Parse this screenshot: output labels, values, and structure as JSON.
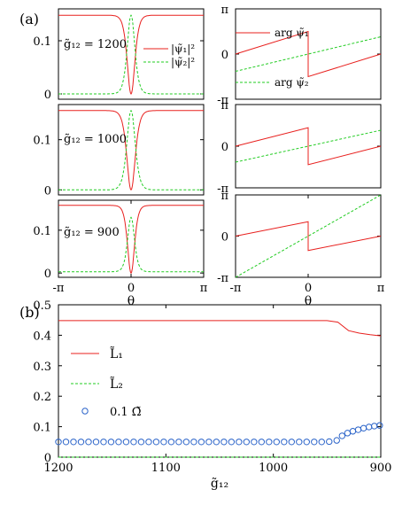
{
  "figure": {
    "label_a": "(a)",
    "label_b": "(b)"
  },
  "legend": {
    "density_1": "|ψ̃₁|²",
    "density_2": "|ψ̃₂|²",
    "phase_1": "arg ψ̃₁",
    "phase_2": "arg ψ̃₂",
    "L1": "L̃₁",
    "L2": "L̃₂",
    "Omega": "0.1 Ω̃"
  },
  "colors": {
    "series_1": "#e8201e",
    "series_2": "#22cc22",
    "omega": "#2a63c9"
  },
  "chart_data": [
    {
      "type": "line",
      "panel": "density",
      "annotation": "g̃₁₂ = 1200",
      "xlim": [
        -3.14159,
        3.14159
      ],
      "ylim": [
        -0.01,
        0.16
      ],
      "yticks": [
        "0",
        "0.1"
      ],
      "xticks": [],
      "series": [
        {
          "name": "|ψ̃₁|²",
          "plateau": 0.148,
          "min": 0.0,
          "width": 0.22
        },
        {
          "name": "|ψ̃₂|²",
          "peak": 0.148,
          "base": 0.0,
          "width": 0.22
        }
      ]
    },
    {
      "type": "line",
      "panel": "density",
      "annotation": "g̃₁₂ = 1000",
      "xlim": [
        -3.14159,
        3.14159
      ],
      "ylim": [
        -0.01,
        0.17
      ],
      "yticks": [
        "0",
        "0.1"
      ],
      "xticks": [],
      "series": [
        {
          "plateau": 0.158,
          "min": 0.0,
          "width": 0.24
        },
        {
          "peak": 0.158,
          "base": 0.0,
          "width": 0.24
        }
      ]
    },
    {
      "type": "line",
      "panel": "density",
      "annotation": "g̃₁₂ = 900",
      "xlim": [
        -3.14159,
        3.14159
      ],
      "ylim": [
        -0.01,
        0.17
      ],
      "yticks": [
        "0",
        "0.1"
      ],
      "xticks": [
        "-π",
        "0",
        "π"
      ],
      "xlabel": "θ",
      "series": [
        {
          "plateau": 0.158,
          "min": 0.0,
          "width": 0.2
        },
        {
          "peak": 0.13,
          "base": 0.003,
          "width": 0.2
        }
      ]
    },
    {
      "type": "line",
      "panel": "phase",
      "xlim": [
        -3.14159,
        3.14159
      ],
      "ylim": [
        -3.14159,
        3.14159
      ],
      "yticks": [
        "-π",
        "0",
        "π"
      ],
      "xticks": [],
      "series": [
        {
          "name": "arg ψ̃₁",
          "start": 0.0,
          "before_jump": 1.57,
          "after_jump": -1.57,
          "end": 0.0
        },
        {
          "name": "arg ψ̃₂",
          "start": -1.2,
          "end": 1.2
        }
      ]
    },
    {
      "type": "line",
      "panel": "phase",
      "xlim": [
        -3.14159,
        3.14159
      ],
      "ylim": [
        -3.14159,
        3.14159
      ],
      "yticks": [
        "-π",
        "0",
        "π"
      ],
      "xticks": [],
      "series": [
        {
          "start": 0.0,
          "before_jump": 1.4,
          "after_jump": -1.4,
          "end": 0.0
        },
        {
          "start": -1.2,
          "end": 1.2
        }
      ]
    },
    {
      "type": "line",
      "panel": "phase",
      "xlim": [
        -3.14159,
        3.14159
      ],
      "ylim": [
        -3.14159,
        3.14159
      ],
      "yticks": [
        "-π",
        "0",
        "π"
      ],
      "xticks": [
        "-π",
        "0",
        "π"
      ],
      "xlabel": "θ",
      "series": [
        {
          "start": 0.0,
          "before_jump": 1.1,
          "after_jump": -1.1,
          "end": 0.0
        },
        {
          "start": -3.14159,
          "end": 3.14159
        }
      ]
    },
    {
      "type": "line",
      "panel": "angular_momentum",
      "xlim": [
        1200,
        900
      ],
      "ylim": [
        0.0,
        0.5
      ],
      "xticks": [
        "1200",
        "1100",
        "1000",
        "900"
      ],
      "yticks": [
        "0",
        "0.1",
        "0.2",
        "0.3",
        "0.4",
        "0.5"
      ],
      "xlabel": "g̃₁₂",
      "series": [
        {
          "name": "L̃₁",
          "x": [
            1200,
            1100,
            1000,
            950,
            940,
            930,
            920,
            910,
            900
          ],
          "y": [
            0.448,
            0.448,
            0.448,
            0.448,
            0.443,
            0.415,
            0.407,
            0.402,
            0.398
          ]
        },
        {
          "name": "L̃₂",
          "x": [
            1200,
            900
          ],
          "y": [
            0.0,
            0.0
          ]
        },
        {
          "name": "0.1 Ω̃",
          "x": [
            1200,
            1193,
            1186,
            1179,
            1172,
            1165,
            1158,
            1151,
            1144,
            1137,
            1130,
            1123,
            1116,
            1109,
            1102,
            1095,
            1088,
            1081,
            1074,
            1067,
            1060,
            1053,
            1046,
            1039,
            1032,
            1025,
            1018,
            1011,
            1004,
            997,
            990,
            983,
            976,
            969,
            962,
            955,
            948,
            941,
            936,
            931,
            926,
            921,
            916,
            911,
            906,
            901
          ],
          "y": [
            0.05,
            0.05,
            0.05,
            0.05,
            0.05,
            0.05,
            0.05,
            0.05,
            0.05,
            0.05,
            0.05,
            0.05,
            0.05,
            0.05,
            0.05,
            0.05,
            0.05,
            0.05,
            0.05,
            0.05,
            0.05,
            0.05,
            0.05,
            0.05,
            0.05,
            0.05,
            0.05,
            0.05,
            0.05,
            0.05,
            0.05,
            0.05,
            0.05,
            0.05,
            0.05,
            0.05,
            0.051,
            0.055,
            0.07,
            0.079,
            0.085,
            0.09,
            0.095,
            0.099,
            0.102,
            0.104
          ]
        }
      ]
    }
  ]
}
